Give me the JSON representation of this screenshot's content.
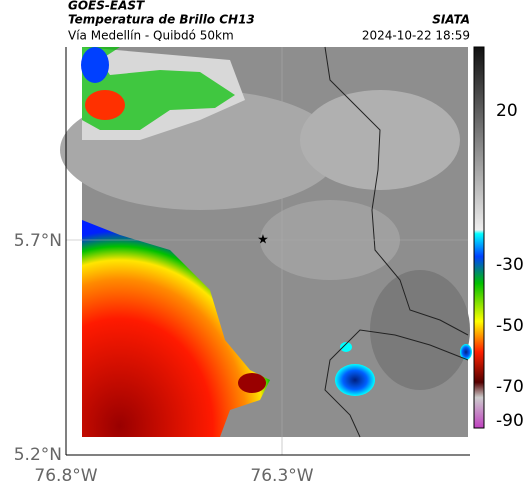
{
  "header": {
    "source": "GOES-EAST",
    "title": "Temperatura de Brillo CH13",
    "subtitle": "Vía Medellín - Quibdó 50km",
    "brand": "SIATA",
    "timestamp": "2024-10-22 18:59"
  },
  "axes": {
    "y_labels": [
      "5.7°N",
      "5.2°N"
    ],
    "x_labels": [
      "76.8°W",
      "76.3°W"
    ]
  },
  "colorbar": {
    "labels": [
      "20",
      "-30",
      "-50",
      "-70",
      "-90"
    ]
  }
}
